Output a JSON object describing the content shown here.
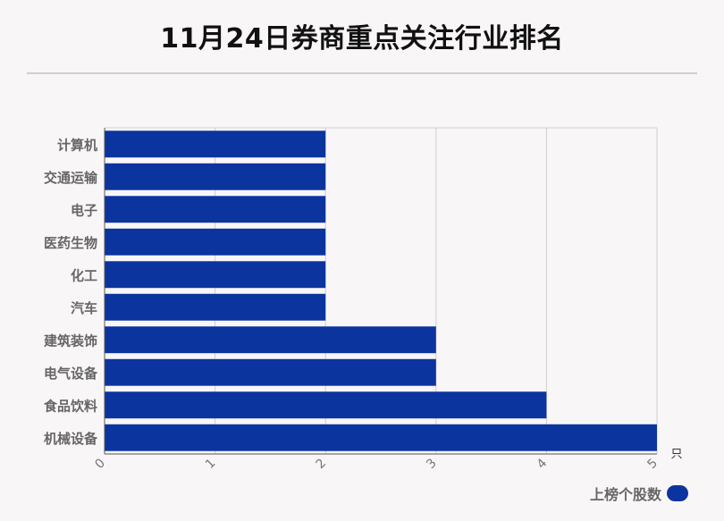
{
  "title": "11月24日券商重点关注行业排名",
  "legend": {
    "label": "上榜个股数",
    "color": "#0b349f"
  },
  "chart_data": {
    "type": "bar",
    "orientation": "horizontal",
    "title": "11月24日券商重点关注行业排名",
    "categories": [
      "计算机",
      "交通运输",
      "电子",
      "医药生物",
      "化工",
      "汽车",
      "建筑装饰",
      "电气设备",
      "食品饮料",
      "机械设备"
    ],
    "series": [
      {
        "name": "上榜个股数",
        "values": [
          2,
          2,
          2,
          2,
          2,
          2,
          3,
          3,
          4,
          5
        ]
      }
    ],
    "x_ticks": [
      "0",
      "1",
      "2",
      "3",
      "4",
      "5"
    ],
    "x_unit": "只",
    "xlim": [
      0,
      5
    ],
    "grid": true,
    "legend_position": "bottom-right",
    "bar_color": "#0b349f"
  }
}
